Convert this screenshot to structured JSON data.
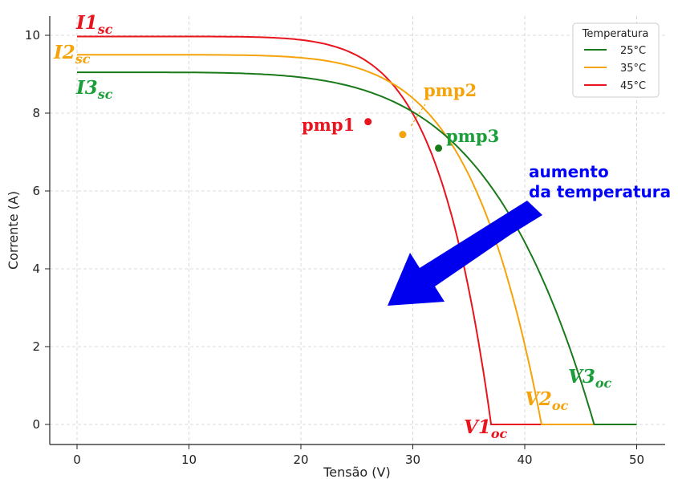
{
  "chart_data": {
    "type": "line",
    "xlabel": "Tensão (V)",
    "ylabel": "Corrente (A)",
    "xlim": [
      -2.5,
      52.5
    ],
    "ylim": [
      -0.5,
      10.5
    ],
    "xticks": [
      0,
      10,
      20,
      30,
      40,
      50
    ],
    "yticks": [
      0,
      2,
      4,
      6,
      8,
      10
    ],
    "grid": true,
    "legend": {
      "title": "Temperatura",
      "placement": "top-right"
    },
    "series": [
      {
        "name": "25°C",
        "color": "#1a7a1a",
        "isc": 9.05,
        "voc": 46.2,
        "shape": 2.3,
        "mpp": {
          "label": "pmp3",
          "v": 32.3,
          "i": 7.1
        }
      },
      {
        "name": "35°C",
        "color": "#f5a30a",
        "isc": 9.5,
        "voc": 41.5,
        "shape": 3.0,
        "mpp": {
          "label": "pmp2",
          "v": 29.1,
          "i": 7.45
        }
      },
      {
        "name": "45°C",
        "color": "#e8141e",
        "isc": 9.97,
        "voc": 37.0,
        "shape": 3.5,
        "mpp": {
          "label": "pmp1",
          "v": 26.0,
          "i": 7.78
        }
      }
    ],
    "zero_line_end": 50,
    "annotations": {
      "isc": [
        {
          "base": "I1",
          "sub": "sc",
          "color": "#e8141e"
        },
        {
          "base": "I2",
          "sub": "sc",
          "color": "#f5a30a"
        },
        {
          "base": "I3",
          "sub": "sc",
          "color": "#1a9e3a"
        }
      ],
      "voc": [
        {
          "base": "V1",
          "sub": "oc",
          "color": "#e8141e"
        },
        {
          "base": "V2",
          "sub": "oc",
          "color": "#f5a30a"
        },
        {
          "base": "V3",
          "sub": "oc",
          "color": "#1a9e3a"
        }
      ],
      "mpp_labels": [
        {
          "text": "pmp1",
          "color": "#e8141e"
        },
        {
          "text": "pmp2",
          "color": "#f5a30a"
        },
        {
          "text": "pmp3",
          "color": "#1a9e3a"
        }
      ],
      "arrow_text_line1": "aumento",
      "arrow_text_line2": "da temperatura",
      "arrow_color": "#0000ff"
    }
  }
}
